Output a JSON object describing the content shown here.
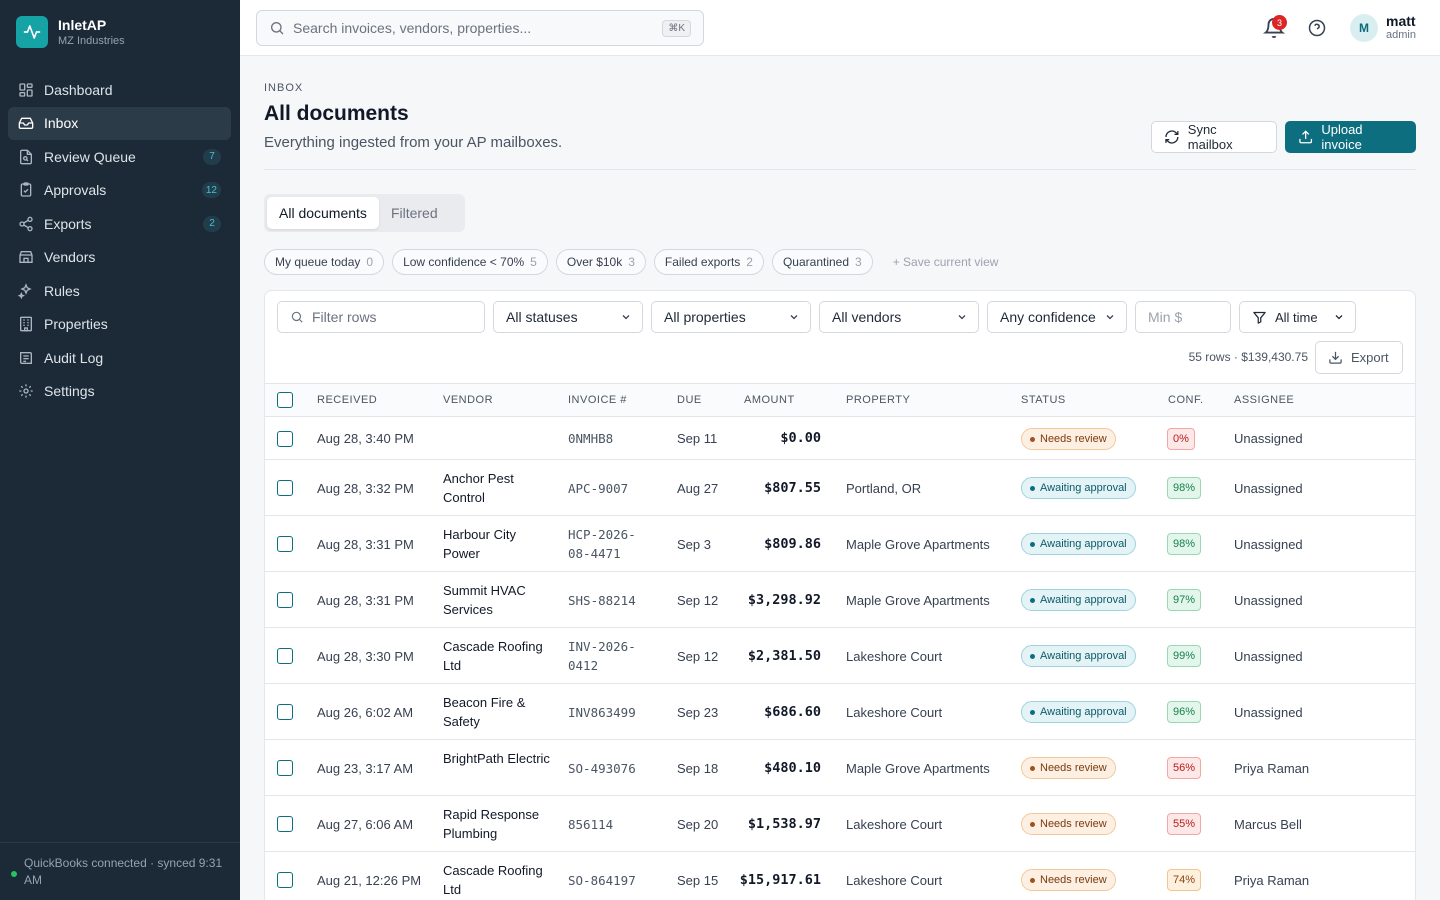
{
  "app": {
    "name": "InletAP",
    "org": "MZ Industries"
  },
  "sidebar": {
    "items": [
      {
        "label": "Dashboard",
        "icon": "dashboard-icon",
        "badge": ""
      },
      {
        "label": "Inbox",
        "icon": "inbox-icon",
        "badge": ""
      },
      {
        "label": "Review Queue",
        "icon": "review-icon",
        "badge": "7"
      },
      {
        "label": "Approvals",
        "icon": "approvals-icon",
        "badge": "12"
      },
      {
        "label": "Exports",
        "icon": "exports-icon",
        "badge": "2"
      },
      {
        "label": "Vendors",
        "icon": "vendors-icon",
        "badge": ""
      },
      {
        "label": "Rules",
        "icon": "rules-icon",
        "badge": ""
      },
      {
        "label": "Properties",
        "icon": "properties-icon",
        "badge": ""
      },
      {
        "label": "Audit Log",
        "icon": "audit-log-icon",
        "badge": ""
      },
      {
        "label": "Settings",
        "icon": "settings-icon",
        "badge": ""
      }
    ],
    "footer": "QuickBooks connected · synced 9:31 AM"
  },
  "topbar": {
    "search_placeholder": "Search invoices, vendors, properties...",
    "shortcut": "⌘K",
    "notifications_count": "3",
    "user": {
      "initial": "M",
      "name": "matt",
      "role": "admin"
    }
  },
  "page": {
    "crumb": "INBOX",
    "title": "All documents",
    "subtitle": "Everything ingested from your AP mailboxes.",
    "sync_label": "Sync mailbox",
    "upload_label": "Upload invoice"
  },
  "tabs": [
    "All documents",
    "Filtered"
  ],
  "chips": [
    {
      "label": "My queue today",
      "count": "0"
    },
    {
      "label": "Low confidence < 70%",
      "count": "5"
    },
    {
      "label": "Over $10k",
      "count": "3"
    },
    {
      "label": "Failed exports",
      "count": "2"
    },
    {
      "label": "Quarantined",
      "count": "3"
    }
  ],
  "save_view": "+ Save current view",
  "filters": {
    "rows_placeholder": "Filter rows",
    "status": "All statuses",
    "property": "All properties",
    "vendor": "All vendors",
    "confidence": "Any confidence",
    "min_placeholder": "Min $",
    "time": "All time"
  },
  "summary": "55 rows · $139,430.75",
  "export_label": "Export",
  "columns": [
    "RECEIVED",
    "VENDOR",
    "INVOICE #",
    "DUE",
    "AMOUNT",
    "PROPERTY",
    "STATUS",
    "CONF.",
    "ASSIGNEE"
  ],
  "rows": [
    {
      "received": "Aug 28, 3:40 PM",
      "vendor": "",
      "invoice": "0NMHB8",
      "due": "Sep 11",
      "amount": "$0.00",
      "property": "",
      "status": "Needs review",
      "conf": "0%",
      "assignee": "Unassigned"
    },
    {
      "received": "Aug 28, 3:32 PM",
      "vendor": "Anchor Pest Control",
      "invoice": "APC-9007",
      "due": "Aug 27",
      "amount": "$807.55",
      "property": "Portland, OR",
      "status": "Awaiting approval",
      "conf": "98%",
      "assignee": "Unassigned"
    },
    {
      "received": "Aug 28, 3:31 PM",
      "vendor": "Harbour City Power",
      "invoice": "HCP-2026-08-4471",
      "due": "Sep 3",
      "amount": "$809.86",
      "property": "Maple Grove Apartments",
      "status": "Awaiting approval",
      "conf": "98%",
      "assignee": "Unassigned"
    },
    {
      "received": "Aug 28, 3:31 PM",
      "vendor": "Summit HVAC Services",
      "invoice": "SHS-88214",
      "due": "Sep 12",
      "amount": "$3,298.92",
      "property": "Maple Grove Apartments",
      "status": "Awaiting approval",
      "conf": "97%",
      "assignee": "Unassigned"
    },
    {
      "received": "Aug 28, 3:30 PM",
      "vendor": "Cascade Roofing Ltd",
      "invoice": "INV-2026-0412",
      "due": "Sep 12",
      "amount": "$2,381.50",
      "property": "Lakeshore Court",
      "status": "Awaiting approval",
      "conf": "99%",
      "assignee": "Unassigned"
    },
    {
      "received": "Aug 26, 6:02 AM",
      "vendor": "Beacon Fire & Safety",
      "invoice": "INV863499",
      "due": "Sep 23",
      "amount": "$686.60",
      "property": "Lakeshore Court",
      "status": "Awaiting approval",
      "conf": "96%",
      "assignee": "Unassigned"
    },
    {
      "received": "Aug 23, 3:17 AM",
      "vendor": "BrightPath Electric",
      "invoice": "SO-493076",
      "due": "Sep 18",
      "amount": "$480.10",
      "property": "Maple Grove Apartments",
      "status": "Needs review",
      "conf": "56%",
      "assignee": "Priya Raman"
    },
    {
      "received": "Aug 27, 6:06 AM",
      "vendor": "Rapid Response Plumbing",
      "invoice": "856114",
      "due": "Sep 20",
      "amount": "$1,538.97",
      "property": "Lakeshore Court",
      "status": "Needs review",
      "conf": "55%",
      "assignee": "Marcus Bell"
    },
    {
      "received": "Aug 21, 12:26 PM",
      "vendor": "Cascade Roofing Ltd",
      "invoice": "SO-864197",
      "due": "Sep 15",
      "amount": "$15,917.61",
      "property": "Lakeshore Court",
      "status": "Needs review",
      "conf": "74%",
      "assignee": "Priya Raman"
    }
  ]
}
